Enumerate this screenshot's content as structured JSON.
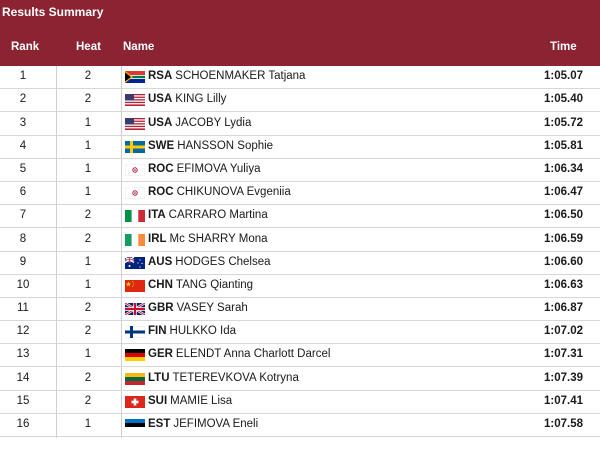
{
  "title": "Results Summary",
  "columns": {
    "rank": "Rank",
    "heat": "Heat",
    "name": "Name",
    "time": "Time"
  },
  "rows": [
    {
      "rank": "1",
      "heat": "2",
      "code": "RSA",
      "name": "SCHOENMAKER Tatjana",
      "time": "1:05.07",
      "flag": "rsa-flag-icon"
    },
    {
      "rank": "2",
      "heat": "2",
      "code": "USA",
      "name": "KING Lilly",
      "time": "1:05.40",
      "flag": "usa-flag-icon"
    },
    {
      "rank": "3",
      "heat": "1",
      "code": "USA",
      "name": "JACOBY Lydia",
      "time": "1:05.72",
      "flag": "usa-flag-icon"
    },
    {
      "rank": "4",
      "heat": "1",
      "code": "SWE",
      "name": "HANSSON Sophie",
      "time": "1:05.81",
      "flag": "swe-flag-icon"
    },
    {
      "rank": "5",
      "heat": "1",
      "code": "ROC",
      "name": "EFIMOVA Yuliya",
      "time": "1:06.34",
      "flag": "roc-flag-icon"
    },
    {
      "rank": "6",
      "heat": "1",
      "code": "ROC",
      "name": "CHIKUNOVA Evgeniia",
      "time": "1:06.47",
      "flag": "roc-flag-icon"
    },
    {
      "rank": "7",
      "heat": "2",
      "code": "ITA",
      "name": "CARRARO Martina",
      "time": "1:06.50",
      "flag": "ita-flag-icon"
    },
    {
      "rank": "8",
      "heat": "2",
      "code": "IRL",
      "name": "Mc SHARRY Mona",
      "time": "1:06.59",
      "flag": "irl-flag-icon"
    },
    {
      "rank": "9",
      "heat": "1",
      "code": "AUS",
      "name": "HODGES Chelsea",
      "time": "1:06.60",
      "flag": "aus-flag-icon"
    },
    {
      "rank": "10",
      "heat": "1",
      "code": "CHN",
      "name": "TANG Qianting",
      "time": "1:06.63",
      "flag": "chn-flag-icon"
    },
    {
      "rank": "11",
      "heat": "2",
      "code": "GBR",
      "name": "VASEY Sarah",
      "time": "1:06.87",
      "flag": "gbr-flag-icon"
    },
    {
      "rank": "12",
      "heat": "2",
      "code": "FIN",
      "name": "HULKKO Ida",
      "time": "1:07.02",
      "flag": "fin-flag-icon"
    },
    {
      "rank": "13",
      "heat": "1",
      "code": "GER",
      "name": "ELENDT Anna Charlott Darcel",
      "time": "1:07.31",
      "flag": "ger-flag-icon"
    },
    {
      "rank": "14",
      "heat": "2",
      "code": "LTU",
      "name": "TETEREVKOVA Kotryna",
      "time": "1:07.39",
      "flag": "ltu-flag-icon"
    },
    {
      "rank": "15",
      "heat": "2",
      "code": "SUI",
      "name": "MAMIE Lisa",
      "time": "1:07.41",
      "flag": "sui-flag-icon"
    },
    {
      "rank": "16",
      "heat": "1",
      "code": "EST",
      "name": "JEFIMOVA Eneli",
      "time": "1:07.58",
      "flag": "est-flag-icon"
    }
  ],
  "colors": {
    "header_bg": "#8b2332",
    "header_text": "#ffffff",
    "row_border": "#d7d7d7"
  }
}
